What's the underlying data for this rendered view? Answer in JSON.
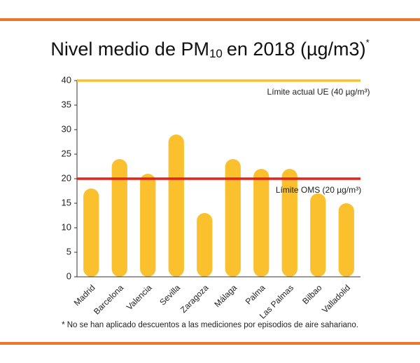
{
  "chart_data": {
    "type": "bar",
    "title": "Nivel medio de PM",
    "title_subscript": "10",
    "title_rest": "en 2018 (µg/m3)",
    "title_superscript": "*",
    "footnote": "* No se han aplicado descuentos a las mediciones por episodios de aire sahariano.",
    "categories": [
      "Madrid",
      "Barcelona",
      "Valencia",
      "Sevilla",
      "Zaragoza",
      "Málaga",
      "Palma",
      "Las Palmas",
      "Bilbao",
      "Valladolid"
    ],
    "values": [
      18,
      24,
      21,
      29,
      13,
      24,
      22,
      22,
      17,
      15
    ],
    "color": "#fbc02d",
    "ylim": [
      0,
      40
    ],
    "yticks": [
      0,
      5,
      10,
      15,
      20,
      25,
      30,
      35,
      40
    ],
    "reference_lines": [
      {
        "value": 40,
        "label": "Límite actual UE (40 µg/m³)",
        "color": "#f6c32c"
      },
      {
        "value": 20,
        "label": "Límite OMS (20 µg/m³)",
        "color": "#e2231a"
      }
    ]
  }
}
